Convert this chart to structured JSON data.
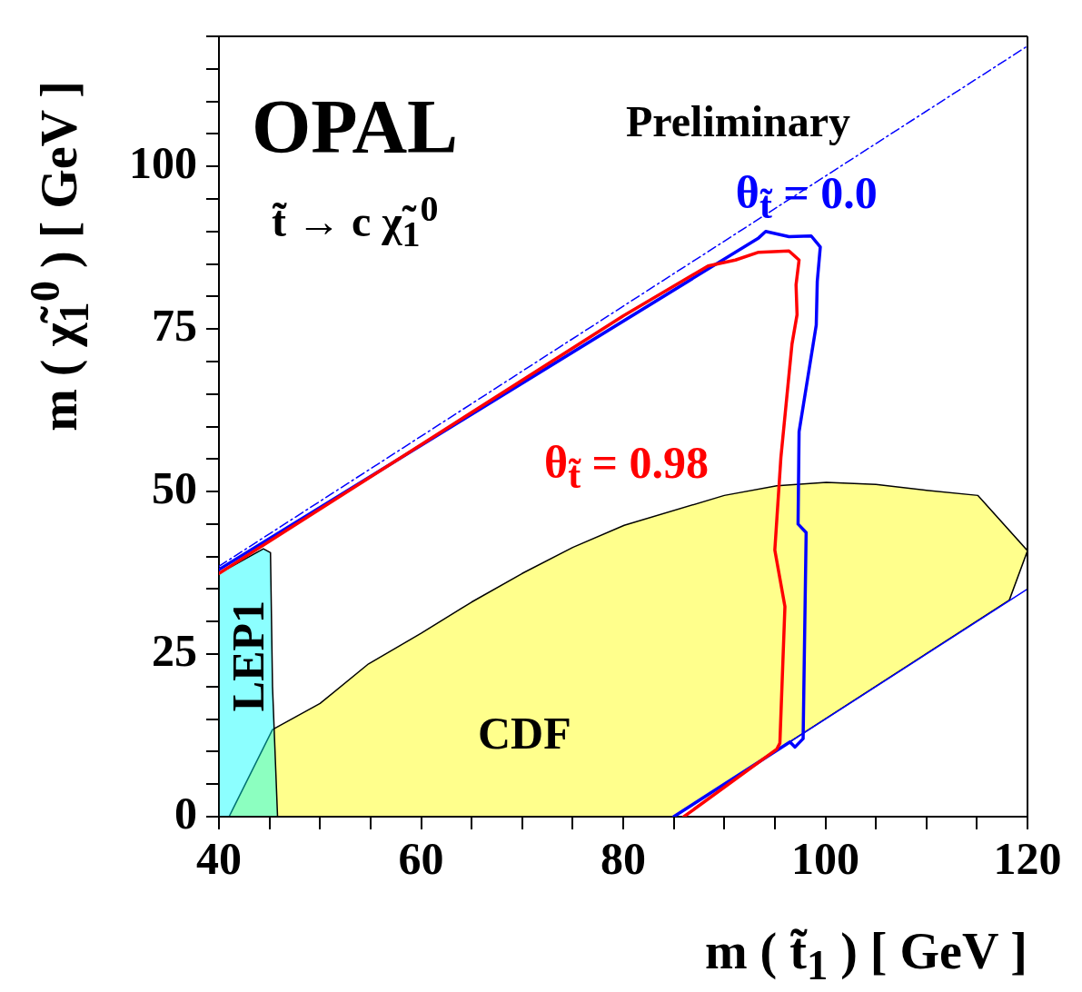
{
  "chart_data": {
    "type": "line",
    "title": "OPAL",
    "subtitle": "Preliminary",
    "xlabel": "m ( t̃$_{1}$ ) [ GeV ]",
    "ylabel": "m ( χ̃$_{1}$$^{0}$ ) [ GeV ]",
    "xlim": [
      40,
      120
    ],
    "ylim": [
      0,
      120
    ],
    "xticks": [
      40,
      {
        "value": 45,
        "label": null
      },
      {
        "value": 50,
        "label": null
      },
      {
        "value": 55,
        "label": null
      },
      60,
      {
        "value": 65,
        "label": null
      },
      {
        "value": 70,
        "label": null
      },
      {
        "value": 75,
        "label": null
      },
      80,
      {
        "value": 85,
        "label": null
      },
      {
        "value": 90,
        "label": null
      },
      {
        "value": 95,
        "label": null
      },
      100,
      {
        "value": 105,
        "label": null
      },
      {
        "value": 110,
        "label": null
      },
      {
        "value": 115,
        "label": null
      },
      120
    ],
    "yticks": [
      0,
      {
        "value": 5,
        "label": null
      },
      {
        "value": 10,
        "label": null
      },
      {
        "value": 15,
        "label": null
      },
      {
        "value": 20,
        "label": null
      },
      25,
      {
        "value": 30,
        "label": null
      },
      {
        "value": 35,
        "label": null
      },
      {
        "value": 40,
        "label": null
      },
      {
        "value": 45,
        "label": null
      },
      50,
      {
        "value": 55,
        "label": null
      },
      {
        "value": 60,
        "label": null
      },
      {
        "value": 65,
        "label": null
      },
      {
        "value": 70,
        "label": null
      },
      75,
      {
        "value": 80,
        "label": null
      },
      {
        "value": 85,
        "label": null
      },
      {
        "value": 90,
        "label": null
      },
      {
        "value": 95,
        "label": null
      },
      100,
      {
        "value": 105,
        "label": null
      },
      {
        "value": 110,
        "label": null
      },
      {
        "value": 115,
        "label": null
      },
      {
        "value": 120,
        "label": null
      }
    ],
    "series": [
      {
        "type": "area",
        "name": "CDF",
        "color": "#ffff00",
        "x": [
          41,
          45.3,
          50,
          54.8,
          60,
          65,
          70,
          75,
          80.1,
          90,
          95.2,
          100.1,
          105,
          110,
          115.1,
          120,
          118.2,
          85,
          41
        ],
        "values": [
          0,
          13.4,
          17.4,
          23.5,
          28.2,
          33,
          37.4,
          41.4,
          44.8,
          49.4,
          50.9,
          51.4,
          51.1,
          50.2,
          49.4,
          40.9,
          33.3,
          0,
          0
        ]
      },
      {
        "type": "area",
        "name": "LEP1",
        "color": "#00ffff",
        "x": [
          40,
          40,
          44.4,
          45.1,
          45.3,
          45.8,
          40
        ],
        "values": [
          0,
          37.4,
          41.2,
          40.6,
          20,
          0,
          0
        ]
      },
      {
        "type": "line",
        "color": "#0000ff",
        "line_style": "dashed",
        "x": [
          40,
          120
        ],
        "values": [
          38.5,
          118.5
        ]
      },
      {
        "type": "line",
        "color": "#0000ff",
        "line_style": "solid",
        "x": [
          85,
          120
        ],
        "values": [
          0,
          35
        ]
      },
      {
        "type": "line",
        "name": "θ$_{t̃}$ = 0.0",
        "color": "#0000ff",
        "x": [
          40,
          93.4,
          94.1,
          96.4,
          98.6,
          99.5,
          99.2,
          99.1,
          97.4,
          97.3,
          98.1,
          97.8,
          97,
          96.5,
          85
        ],
        "values": [
          38,
          89,
          90,
          89.2,
          89.3,
          87.6,
          82.3,
          75.6,
          59.2,
          45,
          43.7,
          12,
          10.7,
          11.5,
          0
        ]
      },
      {
        "type": "line",
        "name": "θ$_{t̃}$ = 0.98",
        "color": "#ff0000",
        "x": [
          40,
          80,
          88.4,
          91.1,
          93.4,
          96.4,
          97.4,
          97.1,
          97.2,
          96.7,
          95.6,
          95,
          96,
          95.5,
          95.2,
          86
        ],
        "values": [
          37.4,
          77,
          84.7,
          85.6,
          86.8,
          87,
          85.6,
          81.8,
          77.2,
          72.7,
          55.2,
          41,
          32.3,
          11.3,
          10.4,
          0
        ]
      }
    ],
    "annotations": [
      "t̃ → c χ̃$_{1}$$^{0}$"
    ]
  }
}
